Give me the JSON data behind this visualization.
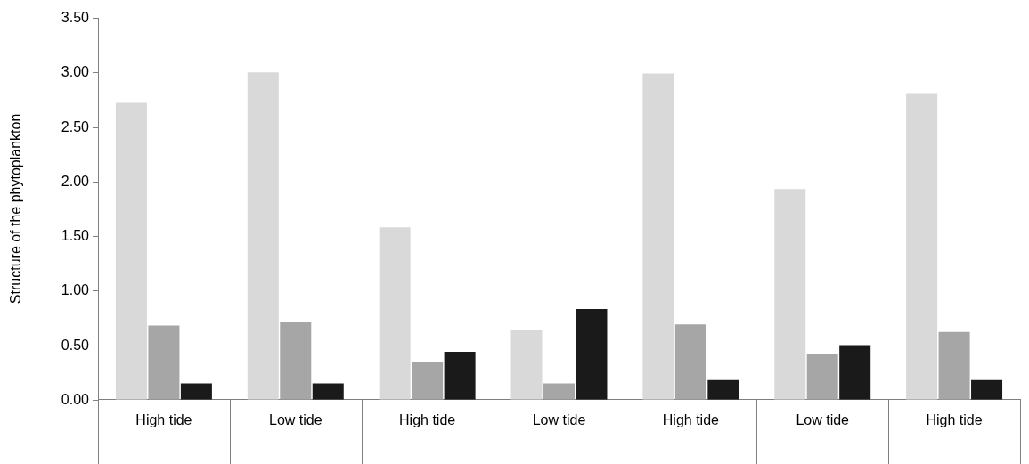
{
  "chart_data": {
    "type": "bar",
    "ylabel": "Structure of the phytoplankton",
    "categories": [
      "High tide",
      "Low tide",
      "High tide",
      "Low tide",
      "High tide",
      "Low tide",
      "High tide"
    ],
    "series": [
      {
        "color": "#d9d9d9",
        "values": [
          2.72,
          3.0,
          1.58,
          0.64,
          2.99,
          1.93,
          2.81
        ]
      },
      {
        "color": "#a6a6a6",
        "values": [
          0.68,
          0.71,
          0.35,
          0.15,
          0.69,
          0.42,
          0.62
        ]
      },
      {
        "color": "#1a1a1a",
        "values": [
          0.15,
          0.15,
          0.44,
          0.83,
          0.18,
          0.5,
          0.18
        ]
      }
    ],
    "ylim": [
      0,
      3.5
    ],
    "yticks": [
      {
        "value": 0,
        "label": "0.00"
      },
      {
        "value": 0.5,
        "label": "0.50"
      },
      {
        "value": 1,
        "label": "1.00"
      },
      {
        "value": 1.5,
        "label": "1.50"
      },
      {
        "value": 2,
        "label": "2.00"
      },
      {
        "value": 2.5,
        "label": "2.50"
      },
      {
        "value": 3,
        "label": "3.00"
      },
      {
        "value": 3.5,
        "label": "3.50"
      }
    ],
    "grid": false,
    "legend": false
  }
}
